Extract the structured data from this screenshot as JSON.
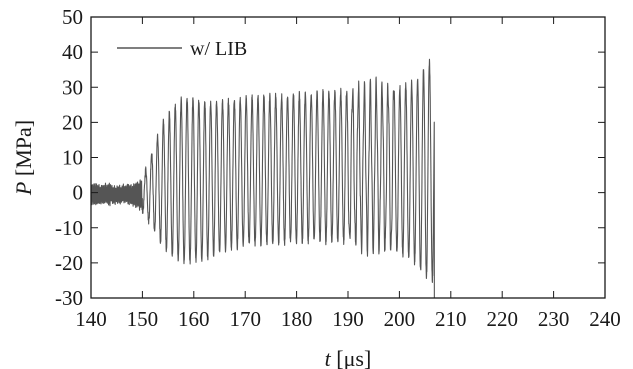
{
  "chart_data": {
    "type": "line",
    "xlabel_italic": "t",
    "xlabel_unit": "[μs]",
    "ylabel_italic": "P",
    "ylabel_unit": "[MPa]",
    "xlim": [
      140,
      240
    ],
    "ylim": [
      -30,
      50
    ],
    "x_ticks": [
      140,
      150,
      160,
      170,
      180,
      190,
      200,
      210,
      220,
      230,
      240
    ],
    "y_ticks": [
      -30,
      -20,
      -10,
      0,
      10,
      20,
      30,
      40,
      50
    ],
    "grid": false,
    "legend_position": "top-left",
    "series": [
      {
        "name": "w/ LIB",
        "color": "#555555",
        "style": "rapid oscillation",
        "t_start": 140,
        "t_end": 206.8,
        "drop_to": -30,
        "oscillation_period_us": 1.15,
        "upper_envelope": [
          [
            140,
            2
          ],
          [
            148,
            2
          ],
          [
            150,
            4
          ],
          [
            152,
            12
          ],
          [
            154,
            20
          ],
          [
            156,
            24
          ],
          [
            158,
            27
          ],
          [
            162,
            26
          ],
          [
            166,
            26
          ],
          [
            170,
            27
          ],
          [
            180,
            28
          ],
          [
            190,
            29
          ],
          [
            200,
            30
          ],
          [
            204,
            32
          ],
          [
            205,
            36
          ],
          [
            206,
            37.5
          ]
        ],
        "lower_envelope": [
          [
            140,
            -3
          ],
          [
            148,
            -3
          ],
          [
            150,
            -5
          ],
          [
            152,
            -10
          ],
          [
            154,
            -15
          ],
          [
            156,
            -18
          ],
          [
            158,
            -20
          ],
          [
            162,
            -19
          ],
          [
            166,
            -16
          ],
          [
            170,
            -15
          ],
          [
            180,
            -14
          ],
          [
            190,
            -14
          ],
          [
            195,
            -15
          ],
          [
            200,
            -17
          ],
          [
            203,
            -20
          ],
          [
            205,
            -24
          ],
          [
            206,
            -25
          ]
        ]
      }
    ]
  }
}
